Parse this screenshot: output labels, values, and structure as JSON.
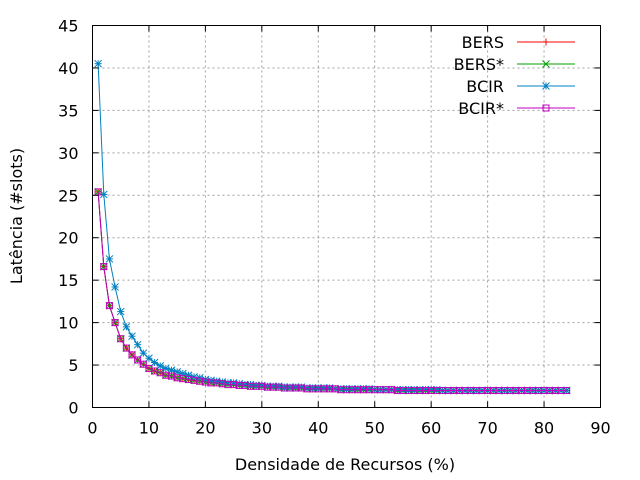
{
  "chart_data": {
    "type": "line",
    "xlabel": "Densidade de Recursos (%)",
    "ylabel": "Latência (#slots)",
    "xlim": [
      0,
      90
    ],
    "ylim": [
      0,
      45
    ],
    "xticks": [
      "0",
      "10",
      "20",
      "30",
      "40",
      "50",
      "60",
      "70",
      "80",
      "90"
    ],
    "yticks": [
      "0",
      "5",
      "10",
      "15",
      "20",
      "25",
      "30",
      "35",
      "40",
      "45"
    ],
    "grid": true,
    "legend_position": "top-right",
    "x": [
      1,
      2,
      3,
      4,
      5,
      6,
      7,
      8,
      9,
      10,
      11,
      12,
      13,
      14,
      15,
      16,
      17,
      18,
      19,
      20,
      21,
      22,
      23,
      24,
      25,
      26,
      27,
      28,
      29,
      30,
      31,
      32,
      33,
      34,
      35,
      36,
      37,
      38,
      39,
      40,
      41,
      42,
      43,
      44,
      45,
      46,
      47,
      48,
      49,
      50,
      51,
      52,
      53,
      54,
      55,
      56,
      57,
      58,
      59,
      60,
      61,
      62,
      63,
      64,
      65,
      66,
      67,
      68,
      69,
      70,
      71,
      72,
      73,
      74,
      75,
      76,
      77,
      78,
      79,
      80,
      81,
      82,
      83,
      84
    ],
    "series": [
      {
        "name": "BERS",
        "color": "#ff0000",
        "marker": "plus",
        "values": [
          25.4,
          16.6,
          12.0,
          10.0,
          8.1,
          7.0,
          6.2,
          5.6,
          5.1,
          4.6,
          4.3,
          4.1,
          3.8,
          3.7,
          3.5,
          3.4,
          3.3,
          3.2,
          3.1,
          3.0,
          2.9,
          2.9,
          2.8,
          2.7,
          2.7,
          2.6,
          2.6,
          2.5,
          2.5,
          2.5,
          2.4,
          2.4,
          2.4,
          2.3,
          2.3,
          2.3,
          2.3,
          2.2,
          2.2,
          2.2,
          2.2,
          2.2,
          2.2,
          2.1,
          2.1,
          2.1,
          2.1,
          2.1,
          2.1,
          2.1,
          2.1,
          2.1,
          2.1,
          2.0,
          2.0,
          2.0,
          2.0,
          2.0,
          2.0,
          2.0,
          2.0,
          2.0,
          2.0,
          2.0,
          2.0,
          2.0,
          2.0,
          2.0,
          2.0,
          2.0,
          2.0,
          2.0,
          2.0,
          2.0,
          2.0,
          2.0,
          2.0,
          2.0,
          2.0,
          2.0,
          2.0,
          2.0,
          2.0,
          2.0
        ]
      },
      {
        "name": "BERS*",
        "color": "#00a000",
        "marker": "x",
        "values": [
          25.4,
          16.6,
          12.0,
          10.0,
          8.1,
          7.0,
          6.2,
          5.6,
          5.1,
          4.6,
          4.3,
          4.1,
          3.8,
          3.7,
          3.5,
          3.4,
          3.3,
          3.2,
          3.1,
          3.0,
          2.9,
          2.9,
          2.8,
          2.7,
          2.7,
          2.6,
          2.6,
          2.5,
          2.5,
          2.5,
          2.4,
          2.4,
          2.4,
          2.3,
          2.3,
          2.3,
          2.3,
          2.2,
          2.2,
          2.2,
          2.2,
          2.2,
          2.2,
          2.1,
          2.1,
          2.1,
          2.1,
          2.1,
          2.1,
          2.1,
          2.1,
          2.1,
          2.1,
          2.0,
          2.0,
          2.0,
          2.0,
          2.0,
          2.0,
          2.0,
          2.0,
          2.0,
          2.0,
          2.0,
          2.0,
          2.0,
          2.0,
          2.0,
          2.0,
          2.0,
          2.0,
          2.0,
          2.0,
          2.0,
          2.0,
          2.0,
          2.0,
          2.0,
          2.0,
          2.0,
          2.0,
          2.0,
          2.0,
          2.0
        ]
      },
      {
        "name": "BCIR",
        "color": "#0080c0",
        "marker": "star",
        "values": [
          40.5,
          25.1,
          17.5,
          14.2,
          11.3,
          9.5,
          8.4,
          7.4,
          6.4,
          5.8,
          5.3,
          4.9,
          4.6,
          4.4,
          4.2,
          4.0,
          3.8,
          3.6,
          3.5,
          3.3,
          3.2,
          3.1,
          3.0,
          2.9,
          2.9,
          2.8,
          2.7,
          2.7,
          2.6,
          2.6,
          2.5,
          2.5,
          2.5,
          2.4,
          2.4,
          2.4,
          2.4,
          2.3,
          2.3,
          2.3,
          2.3,
          2.3,
          2.2,
          2.2,
          2.2,
          2.2,
          2.2,
          2.2,
          2.2,
          2.1,
          2.1,
          2.1,
          2.1,
          2.1,
          2.1,
          2.1,
          2.1,
          2.1,
          2.1,
          2.1,
          2.1,
          2.0,
          2.0,
          2.0,
          2.0,
          2.0,
          2.0,
          2.0,
          2.0,
          2.0,
          2.0,
          2.0,
          2.0,
          2.0,
          2.0,
          2.0,
          2.0,
          2.0,
          2.0,
          2.0,
          2.0,
          2.0,
          2.0,
          2.0
        ]
      },
      {
        "name": "BCIR*",
        "color": "#c000c0",
        "marker": "square",
        "values": [
          25.4,
          16.6,
          12.0,
          10.0,
          8.1,
          7.0,
          6.2,
          5.6,
          5.1,
          4.6,
          4.3,
          4.1,
          3.8,
          3.7,
          3.5,
          3.4,
          3.3,
          3.2,
          3.1,
          3.0,
          2.9,
          2.9,
          2.8,
          2.7,
          2.7,
          2.6,
          2.6,
          2.5,
          2.5,
          2.5,
          2.4,
          2.4,
          2.4,
          2.3,
          2.3,
          2.3,
          2.3,
          2.2,
          2.2,
          2.2,
          2.2,
          2.2,
          2.2,
          2.1,
          2.1,
          2.1,
          2.1,
          2.1,
          2.1,
          2.1,
          2.1,
          2.1,
          2.1,
          2.0,
          2.0,
          2.0,
          2.0,
          2.0,
          2.0,
          2.0,
          2.0,
          2.0,
          2.0,
          2.0,
          2.0,
          2.0,
          2.0,
          2.0,
          2.0,
          2.0,
          2.0,
          2.0,
          2.0,
          2.0,
          2.0,
          2.0,
          2.0,
          2.0,
          2.0,
          2.0,
          2.0,
          2.0,
          2.0,
          2.0
        ]
      }
    ]
  }
}
